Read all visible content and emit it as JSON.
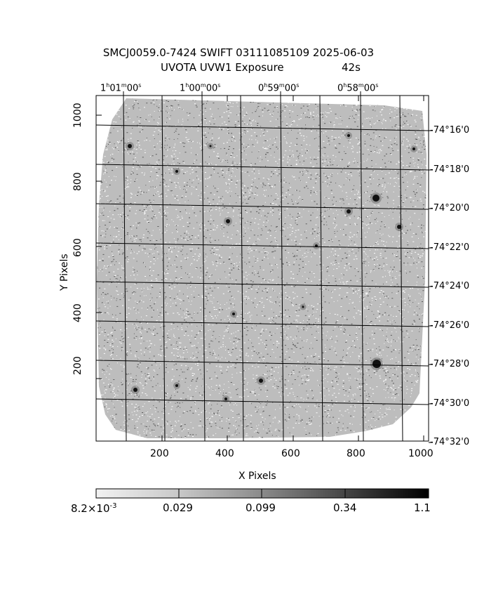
{
  "title": {
    "line1": "SMCJ0059.0-7424 SWIFT 03111085109 2025-06-03",
    "line2_left": "UVOTA UVW1 Exposure",
    "line2_right": "42s"
  },
  "axes": {
    "x_label": "X Pixels",
    "y_label": "Y Pixels",
    "x_ticks": [
      "200",
      "400",
      "600",
      "800",
      "1000"
    ],
    "y_ticks": [
      "200",
      "400",
      "600",
      "800",
      "1000"
    ],
    "ra_ticks": [
      "1h01m00s",
      "1h00m00s",
      "0h59m00s",
      "0h58m00s"
    ],
    "dec_ticks": [
      "-74°16'0",
      "-74°18'0",
      "-74°20'0",
      "-74°22'0",
      "-74°24'0",
      "-74°26'0",
      "-74°28'0",
      "-74°30'0",
      "-74°32'0"
    ]
  },
  "colorbar": {
    "labels": [
      "8.2×10",
      "0.029",
      "0.099",
      "0.34",
      "1.1"
    ],
    "exponent": "-3"
  },
  "colors": {
    "frame": "#000000",
    "noise": "#7a7a7a",
    "background": "#ffffff"
  }
}
